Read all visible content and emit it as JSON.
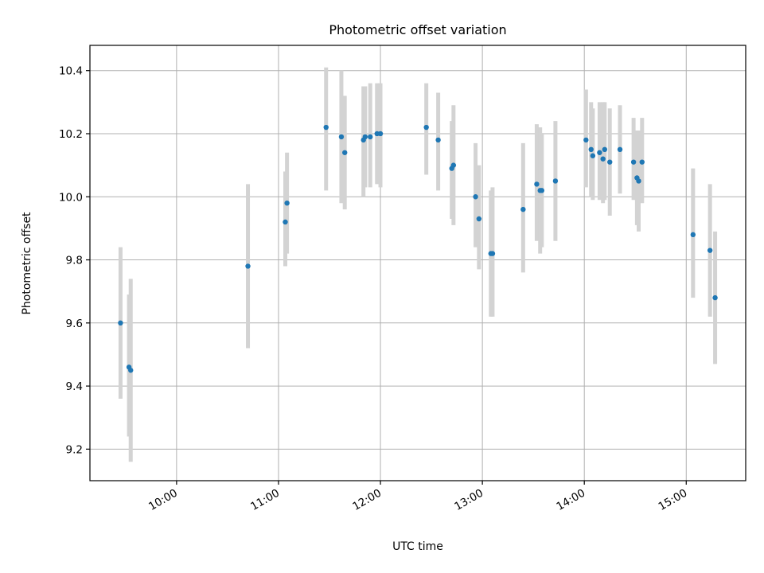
{
  "chart_data": {
    "type": "scatter",
    "title": "Photometric offset variation",
    "xlabel": "UTC time",
    "ylabel": "Photometric offset",
    "grid": true,
    "xlim": [
      "09:09",
      "15:35"
    ],
    "ylim": [
      9.1,
      10.48
    ],
    "x_ticks": [
      "10:00",
      "11:00",
      "12:00",
      "13:00",
      "14:00",
      "15:00"
    ],
    "y_ticks": [
      "9.2",
      "9.4",
      "9.6",
      "9.8",
      "10.0",
      "10.2",
      "10.4"
    ],
    "colors": {
      "point": "#1f77b4",
      "errorbar": "#d3d3d3"
    },
    "points": [
      {
        "x": "09:27",
        "y": 9.6,
        "ylow": 9.36,
        "yhigh": 9.84
      },
      {
        "x": "09:32",
        "y": 9.46,
        "ylow": 9.24,
        "yhigh": 9.69
      },
      {
        "x": "09:33",
        "y": 9.45,
        "ylow": 9.16,
        "yhigh": 9.74
      },
      {
        "x": "10:42",
        "y": 9.78,
        "ylow": 9.52,
        "yhigh": 10.04
      },
      {
        "x": "11:04",
        "y": 9.92,
        "ylow": 9.78,
        "yhigh": 10.08
      },
      {
        "x": "11:05",
        "y": 9.98,
        "ylow": 9.82,
        "yhigh": 10.14
      },
      {
        "x": "11:28",
        "y": 10.22,
        "ylow": 10.02,
        "yhigh": 10.41
      },
      {
        "x": "11:37",
        "y": 10.19,
        "ylow": 9.98,
        "yhigh": 10.4
      },
      {
        "x": "11:39",
        "y": 10.14,
        "ylow": 9.96,
        "yhigh": 10.32
      },
      {
        "x": "11:50",
        "y": 10.18,
        "ylow": 10.0,
        "yhigh": 10.35
      },
      {
        "x": "11:51",
        "y": 10.19,
        "ylow": 10.03,
        "yhigh": 10.35
      },
      {
        "x": "11:54",
        "y": 10.19,
        "ylow": 10.03,
        "yhigh": 10.36
      },
      {
        "x": "11:58",
        "y": 10.2,
        "ylow": 10.04,
        "yhigh": 10.36
      },
      {
        "x": "12:00",
        "y": 10.2,
        "ylow": 10.03,
        "yhigh": 10.36
      },
      {
        "x": "12:27",
        "y": 10.22,
        "ylow": 10.07,
        "yhigh": 10.36
      },
      {
        "x": "12:34",
        "y": 10.18,
        "ylow": 10.02,
        "yhigh": 10.33
      },
      {
        "x": "12:42",
        "y": 10.09,
        "ylow": 9.93,
        "yhigh": 10.24
      },
      {
        "x": "12:43",
        "y": 10.1,
        "ylow": 9.91,
        "yhigh": 10.29
      },
      {
        "x": "12:56",
        "y": 10.0,
        "ylow": 9.84,
        "yhigh": 10.17
      },
      {
        "x": "12:58",
        "y": 9.93,
        "ylow": 9.77,
        "yhigh": 10.1
      },
      {
        "x": "13:05",
        "y": 9.82,
        "ylow": 9.62,
        "yhigh": 10.02
      },
      {
        "x": "13:06",
        "y": 9.82,
        "ylow": 9.62,
        "yhigh": 10.03
      },
      {
        "x": "13:24",
        "y": 9.96,
        "ylow": 9.76,
        "yhigh": 10.17
      },
      {
        "x": "13:32",
        "y": 10.04,
        "ylow": 9.86,
        "yhigh": 10.23
      },
      {
        "x": "13:34",
        "y": 10.02,
        "ylow": 9.82,
        "yhigh": 10.22
      },
      {
        "x": "13:35",
        "y": 10.02,
        "ylow": 9.84,
        "yhigh": 10.2
      },
      {
        "x": "13:43",
        "y": 10.05,
        "ylow": 9.86,
        "yhigh": 10.24
      },
      {
        "x": "14:01",
        "y": 10.18,
        "ylow": 10.03,
        "yhigh": 10.34
      },
      {
        "x": "14:04",
        "y": 10.15,
        "ylow": 10.0,
        "yhigh": 10.3
      },
      {
        "x": "14:05",
        "y": 10.13,
        "ylow": 9.99,
        "yhigh": 10.28
      },
      {
        "x": "14:09",
        "y": 10.14,
        "ylow": 9.99,
        "yhigh": 10.3
      },
      {
        "x": "14:11",
        "y": 10.12,
        "ylow": 9.98,
        "yhigh": 10.3
      },
      {
        "x": "14:12",
        "y": 10.15,
        "ylow": 9.99,
        "yhigh": 10.3
      },
      {
        "x": "14:15",
        "y": 10.11,
        "ylow": 9.94,
        "yhigh": 10.28
      },
      {
        "x": "14:21",
        "y": 10.15,
        "ylow": 10.01,
        "yhigh": 10.29
      },
      {
        "x": "14:29",
        "y": 10.11,
        "ylow": 9.99,
        "yhigh": 10.25
      },
      {
        "x": "14:31",
        "y": 10.06,
        "ylow": 9.91,
        "yhigh": 10.21
      },
      {
        "x": "14:32",
        "y": 10.05,
        "ylow": 9.89,
        "yhigh": 10.21
      },
      {
        "x": "14:34",
        "y": 10.11,
        "ylow": 9.98,
        "yhigh": 10.25
      },
      {
        "x": "15:04",
        "y": 9.88,
        "ylow": 9.68,
        "yhigh": 10.09
      },
      {
        "x": "15:14",
        "y": 9.83,
        "ylow": 9.62,
        "yhigh": 10.04
      },
      {
        "x": "15:17",
        "y": 9.68,
        "ylow": 9.47,
        "yhigh": 9.89
      }
    ]
  }
}
